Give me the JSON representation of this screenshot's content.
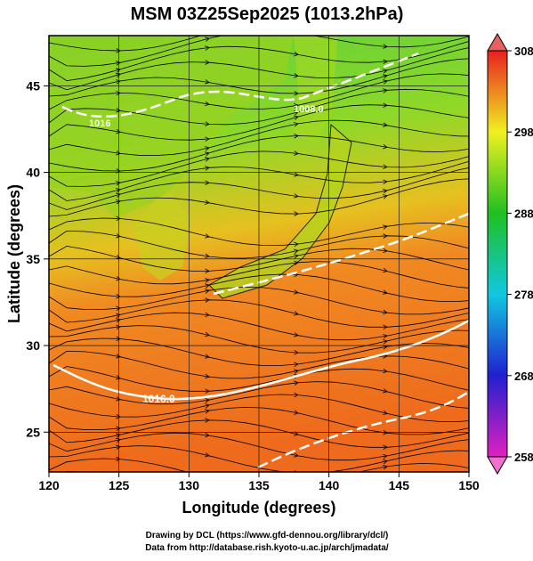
{
  "title": "MSM 03Z25Sep2025 (1013.2hPa)",
  "x_axis": {
    "label": "Longitude (degrees)",
    "lim": [
      120,
      150
    ],
    "ticks": [
      120,
      125,
      130,
      135,
      140,
      145,
      150
    ]
  },
  "y_axis": {
    "label": "Latitude  (degrees)",
    "lim": [
      22.7,
      47.9
    ],
    "ticks": [
      25,
      30,
      35,
      40,
      45
    ]
  },
  "colorbar": {
    "lim": [
      258,
      308
    ],
    "ticks": [
      258,
      268,
      278,
      288,
      298,
      308
    ]
  },
  "contour_labels": [
    "1016.0",
    "1008.0",
    "1016"
  ],
  "credits": [
    "Drawing by DCL (https://www.gfd-dennou.org/library/dcl/)",
    "Data from http://database.rish.kyoto-u.ac.jp/arch/jmadata/"
  ]
}
